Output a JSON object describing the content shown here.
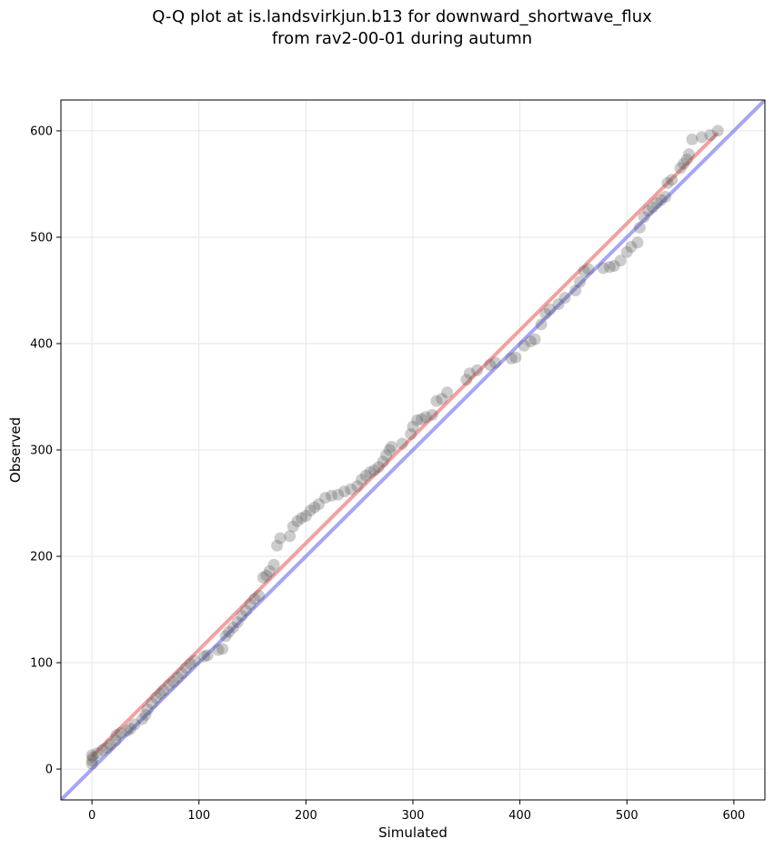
{
  "chart_data": {
    "type": "scatter",
    "title_line1": "Q-Q plot at is.landsvirkjun.b13 for downward_shortwave_flux",
    "title_line2": "from rav2-00-01 during autumn",
    "xlabel": "Simulated",
    "ylabel": "Observed",
    "xlim": [
      -29,
      629
    ],
    "ylim": [
      -29,
      629
    ],
    "xticks": [
      0,
      100,
      200,
      300,
      400,
      500,
      600
    ],
    "yticks": [
      0,
      100,
      200,
      300,
      400,
      500,
      600
    ],
    "grid": true,
    "colors": {
      "points": "#555555",
      "fit_line": "#f08080",
      "identity_line": "#7777ee"
    },
    "fit_line": {
      "x": [
        0,
        585
      ],
      "y": [
        12,
        598
      ]
    },
    "identity_line": {
      "x": [
        -29,
        629
      ],
      "y": [
        -29,
        629
      ]
    },
    "points": [
      [
        0,
        5
      ],
      [
        0,
        8
      ],
      [
        0,
        13
      ],
      [
        1,
        11
      ],
      [
        5,
        15
      ],
      [
        10,
        18
      ],
      [
        14,
        20
      ],
      [
        17,
        23
      ],
      [
        22,
        27
      ],
      [
        23,
        32
      ],
      [
        27,
        34
      ],
      [
        33,
        36
      ],
      [
        36,
        38
      ],
      [
        40,
        42
      ],
      [
        47,
        47
      ],
      [
        50,
        51
      ],
      [
        52,
        56
      ],
      [
        56,
        62
      ],
      [
        60,
        67
      ],
      [
        64,
        71
      ],
      [
        67,
        74
      ],
      [
        72,
        79
      ],
      [
        76,
        82
      ],
      [
        80,
        86
      ],
      [
        84,
        90
      ],
      [
        88,
        95
      ],
      [
        92,
        99
      ],
      [
        96,
        102
      ],
      [
        105,
        106
      ],
      [
        108,
        107
      ],
      [
        118,
        112
      ],
      [
        122,
        113
      ],
      [
        125,
        125
      ],
      [
        128,
        129
      ],
      [
        132,
        133
      ],
      [
        136,
        138
      ],
      [
        140,
        144
      ],
      [
        144,
        149
      ],
      [
        148,
        155
      ],
      [
        152,
        160
      ],
      [
        156,
        163
      ],
      [
        160,
        180
      ],
      [
        163,
        182
      ],
      [
        166,
        186
      ],
      [
        170,
        192
      ],
      [
        173,
        210
      ],
      [
        176,
        217
      ],
      [
        185,
        219
      ],
      [
        188,
        228
      ],
      [
        192,
        233
      ],
      [
        196,
        236
      ],
      [
        200,
        238
      ],
      [
        204,
        243
      ],
      [
        208,
        246
      ],
      [
        212,
        249
      ],
      [
        218,
        255
      ],
      [
        224,
        257
      ],
      [
        230,
        258
      ],
      [
        236,
        261
      ],
      [
        242,
        263
      ],
      [
        248,
        266
      ],
      [
        252,
        272
      ],
      [
        256,
        276
      ],
      [
        260,
        279
      ],
      [
        264,
        281
      ],
      [
        268,
        284
      ],
      [
        272,
        289
      ],
      [
        275,
        295
      ],
      [
        278,
        300
      ],
      [
        280,
        303
      ],
      [
        290,
        306
      ],
      [
        298,
        315
      ],
      [
        300,
        322
      ],
      [
        304,
        328
      ],
      [
        308,
        329
      ],
      [
        312,
        331
      ],
      [
        318,
        333
      ],
      [
        322,
        346
      ],
      [
        327,
        348
      ],
      [
        332,
        354
      ],
      [
        350,
        366
      ],
      [
        353,
        372
      ],
      [
        360,
        375
      ],
      [
        372,
        380
      ],
      [
        377,
        382
      ],
      [
        392,
        386
      ],
      [
        396,
        387
      ],
      [
        404,
        398
      ],
      [
        410,
        402
      ],
      [
        414,
        404
      ],
      [
        420,
        418
      ],
      [
        424,
        428
      ],
      [
        428,
        432
      ],
      [
        436,
        437
      ],
      [
        442,
        443
      ],
      [
        452,
        450
      ],
      [
        456,
        458
      ],
      [
        460,
        468
      ],
      [
        464,
        470
      ],
      [
        478,
        471
      ],
      [
        484,
        472
      ],
      [
        488,
        473
      ],
      [
        494,
        478
      ],
      [
        500,
        486
      ],
      [
        504,
        491
      ],
      [
        510,
        495
      ],
      [
        512,
        509
      ],
      [
        516,
        519
      ],
      [
        520,
        525
      ],
      [
        524,
        528
      ],
      [
        528,
        532
      ],
      [
        532,
        535
      ],
      [
        536,
        538
      ],
      [
        538,
        551
      ],
      [
        542,
        554
      ],
      [
        550,
        565
      ],
      [
        553,
        569
      ],
      [
        556,
        573
      ],
      [
        558,
        578
      ],
      [
        561,
        592
      ],
      [
        570,
        594
      ],
      [
        578,
        596
      ],
      [
        585,
        600
      ]
    ]
  }
}
